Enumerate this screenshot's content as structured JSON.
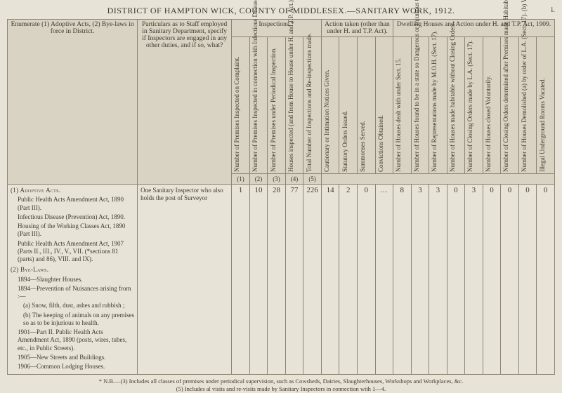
{
  "title": "DISTRICT OF HAMPTON WICK, COUNTY OF MIDDLESEX.—SANITARY WORK, 1912.",
  "page_num": "i.",
  "headers": {
    "enumerate": "Enumerate (1) Adoptive Acts, (2) Bye-laws in force in District.",
    "staff": "Particulars as to Staff employed in Sanitary Department, specify if Inspectors are engaged in any other duties, and if so, what?",
    "inspections": "Inspections.*",
    "action": "Action taken (other than under H. and T.P. Act).",
    "dwelling": "Dwelling Houses and Action under H. and T.P. Act, 1909."
  },
  "columns": [
    "Number of Premises Inspected on Complaint.",
    "Number of Premises Inspected in connection with Infectious Diseases.",
    "Number of Premises under Periodical Inspection.",
    "Houses inspected (and from House to House under H. and T.P. Act.)",
    "Total Number of Inspections and Re-inspections made.",
    "Cautionary or Intimation Notices Given.",
    "Statutory Orders Issued.",
    "Summonses Served.",
    "Convictions Obtained.",
    "Number of Houses dealt with under Sect. 15.",
    "Number of Houses found to be in a state so Dangerous or Injurious to Health (Sect. 17).",
    "Number of Representations made by M.O.H. (Sect. 17).",
    "Number of Houses made habitable without Closing Orders.",
    "Number of Closing Orders made by L.A. (Sect. 17).",
    "Number of Houses closed Voluntarily.",
    "Number of Closing Orders determined after Premises made Habitable (Sect. 17).",
    "Number of Houses Demolished (a) by order of L.A. (Sect. 17). (b) Voluntarily.",
    "Illegal Underground Rooms Vacated."
  ],
  "idx": [
    "(1)",
    "(2)",
    "(3)",
    "(4)",
    "(5)"
  ],
  "left": {
    "adoptive_head": "(1) Adoptive Acts.",
    "adoptive_items": [
      "Public Health Acts Amendment Act, 1890 (Part III).",
      "Infectious Disease (Prevention) Act, 1890.",
      "Housing of the Working Classes Act, 1890 (Part III).",
      "Public Health Acts Amendment Act, 1907 (Parts II., III., IV., V., VII. (*sections 81 (parts) and 86), VIII. and IX)."
    ],
    "byelaws_head": "(2) Bye-Laws.",
    "byelaws_items": [
      "1894—Slaughter Houses.",
      "1894—Prevention of Nuisances arising from :—",
      "(a) Snow, filth, dust, ashes and rubbish ;",
      "(b) The keeping of animals on any premises so as to be injurious to health.",
      "1901—Part II. Public Health Acts Amendment Act, 1890 (posts, wires, tubes, etc., in Public Streets).",
      "1905—New Streets and Buildings.",
      "1906—Common Lodging Houses."
    ]
  },
  "staff_text": "One Sanitary Inspector who also holds the post of Surveyor",
  "values": [
    "1",
    "10",
    "28",
    "77",
    "226",
    "14",
    "2",
    "0",
    "…",
    "8",
    "3",
    "3",
    "0",
    "3",
    "0",
    "0",
    "0",
    "0"
  ],
  "footnote1": "* N.B.—(3) Includes all classes of premises under periodical supervision, such as Cowsheds, Dairies, Slaughterhouses, Workshops and Workplaces, &c.",
  "footnote2": "(5) Includes al visits and re-visits made by Sanitary Inspectors in connection with 1—4."
}
